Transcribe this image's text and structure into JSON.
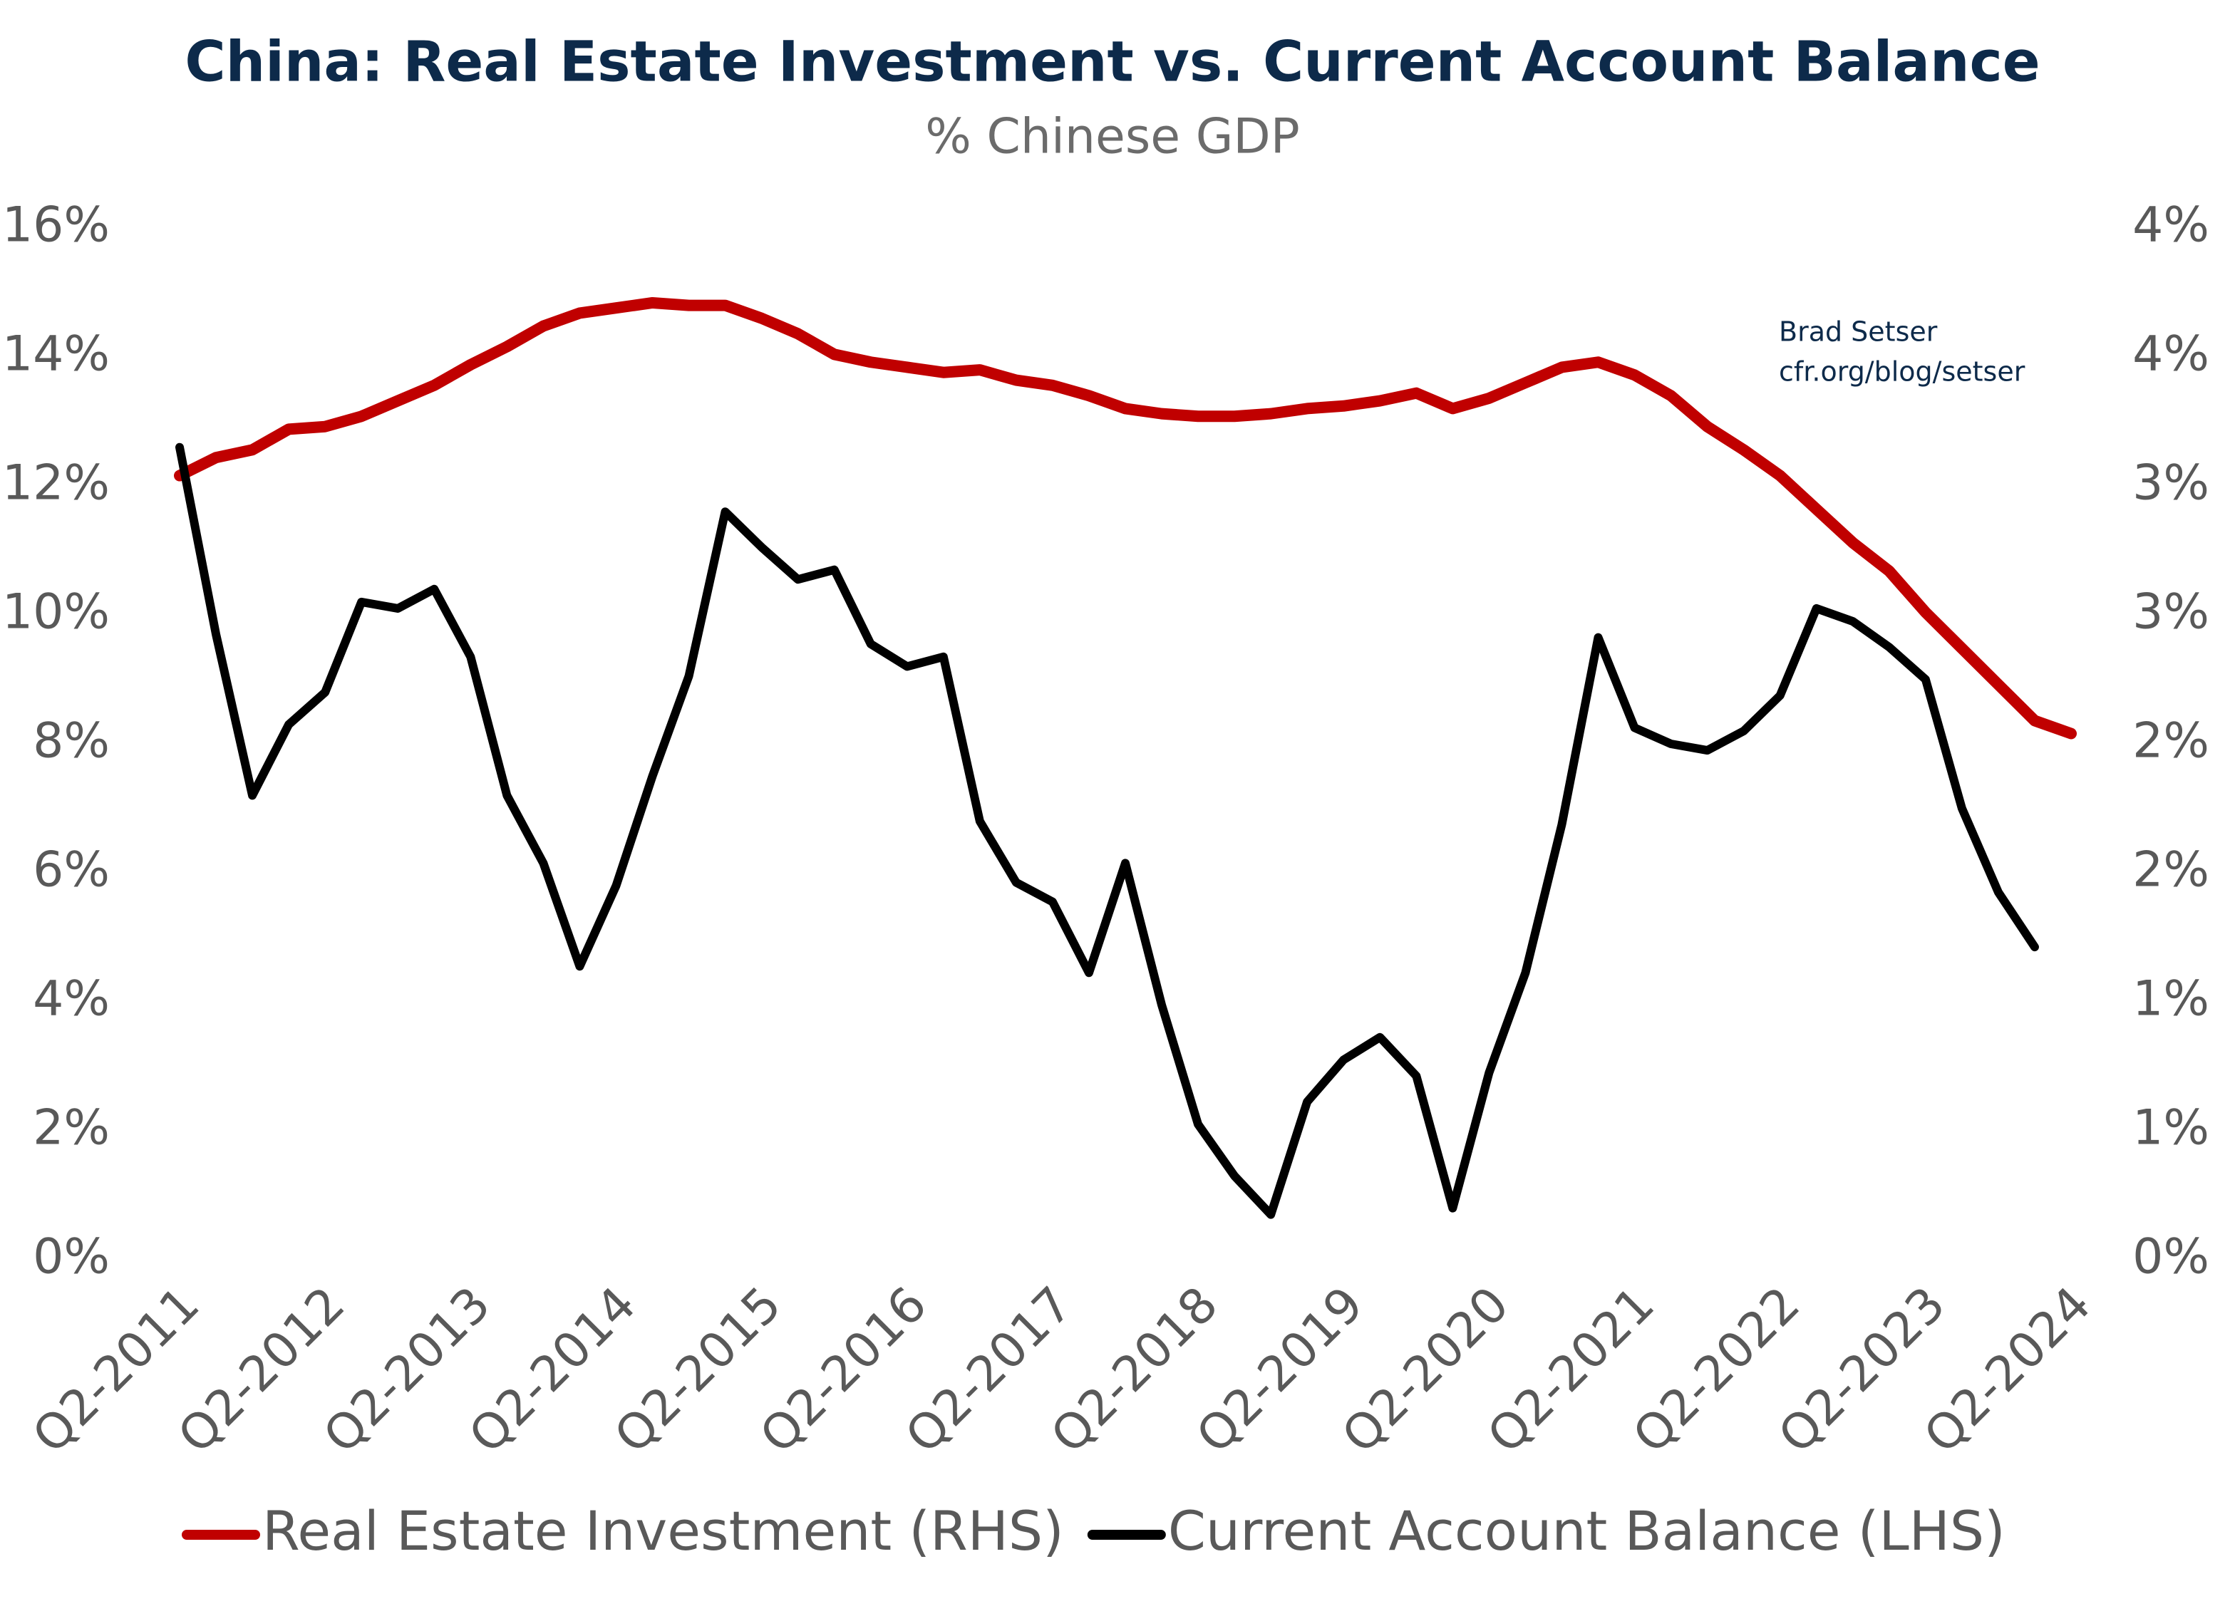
{
  "chart_data": {
    "type": "line",
    "title": "China: Real Estate Investment vs. Current Account Balance",
    "subtitle": "% Chinese GDP",
    "annotations": [
      "Brad Setser",
      "cfr.org/blog/setser"
    ],
    "categories": [
      "Q2-2011",
      null,
      null,
      null,
      "Q2-2012",
      null,
      null,
      null,
      "Q2-2013",
      null,
      null,
      null,
      "Q2-2014",
      null,
      null,
      null,
      "Q2-2015",
      null,
      null,
      null,
      "Q2-2016",
      null,
      null,
      null,
      "Q2-2017",
      null,
      null,
      null,
      "Q2-2018",
      null,
      null,
      null,
      "Q2-2019",
      null,
      null,
      null,
      "Q2-2020",
      null,
      null,
      null,
      "Q2-2021",
      null,
      null,
      null,
      "Q2-2022",
      null,
      null,
      null,
      "Q2-2023",
      null,
      null,
      null,
      "Q2-2024"
    ],
    "series": [
      {
        "name": "Real Estate Investment (RHS)",
        "color": "#c00000",
        "axis": "y2",
        "values": [
          3.04,
          3.11,
          3.14,
          3.22,
          3.23,
          3.27,
          3.33,
          3.39,
          3.47,
          3.54,
          3.62,
          3.67,
          3.69,
          3.71,
          3.7,
          3.7,
          3.65,
          3.59,
          3.51,
          3.48,
          3.46,
          3.44,
          3.45,
          3.41,
          3.39,
          3.35,
          3.3,
          3.28,
          3.27,
          3.27,
          3.28,
          3.3,
          3.31,
          3.33,
          3.36,
          3.3,
          3.34,
          3.4,
          3.46,
          3.48,
          3.43,
          3.35,
          3.23,
          3.14,
          3.04,
          2.91,
          2.78,
          2.67,
          2.51,
          2.37,
          2.23,
          2.09,
          2.04
        ]
      },
      {
        "name": "Current Account Balance (LHS)",
        "color": "#000000",
        "values": [
          12.6,
          9.7,
          7.2,
          8.3,
          8.8,
          10.2,
          10.1,
          10.4,
          9.35,
          7.2,
          6.15,
          4.55,
          5.8,
          7.5,
          9.05,
          11.6,
          11.05,
          10.55,
          10.7,
          9.55,
          9.2,
          9.35,
          6.8,
          5.85,
          5.55,
          4.45,
          6.15,
          3.95,
          2.1,
          1.3,
          0.7,
          2.45,
          3.1,
          3.45,
          2.85,
          0.8,
          2.9,
          4.45,
          6.75,
          9.65,
          8.25,
          8.0,
          7.9,
          8.2,
          8.75,
          10.1,
          9.9,
          9.5,
          9.0,
          7.0,
          5.7,
          4.85,
          null
        ]
      }
    ],
    "ylim": [
      0,
      16
    ],
    "yticks": [
      {
        "value": 0,
        "label": "0%"
      },
      {
        "value": 2,
        "label": "2%"
      },
      {
        "value": 4,
        "label": "4%"
      },
      {
        "value": 6,
        "label": "6%"
      },
      {
        "value": 8,
        "label": "8%"
      },
      {
        "value": 10,
        "label": "10%"
      },
      {
        "value": 12,
        "label": "12%"
      },
      {
        "value": 14,
        "label": "14%"
      },
      {
        "value": 16,
        "label": "16%"
      }
    ],
    "y2lim": [
      0,
      4
    ],
    "y2ticks": [
      {
        "value": 0,
        "label": "0%"
      },
      {
        "value": 0.5,
        "label": "1%"
      },
      {
        "value": 1,
        "label": "1%"
      },
      {
        "value": 1.5,
        "label": "2%"
      },
      {
        "value": 2,
        "label": "2%"
      },
      {
        "value": 2.5,
        "label": "3%"
      },
      {
        "value": 3,
        "label": "3%"
      },
      {
        "value": 3.5,
        "label": "4%"
      },
      {
        "value": 4,
        "label": "4%"
      }
    ],
    "grid": false,
    "legend": "bottom"
  }
}
